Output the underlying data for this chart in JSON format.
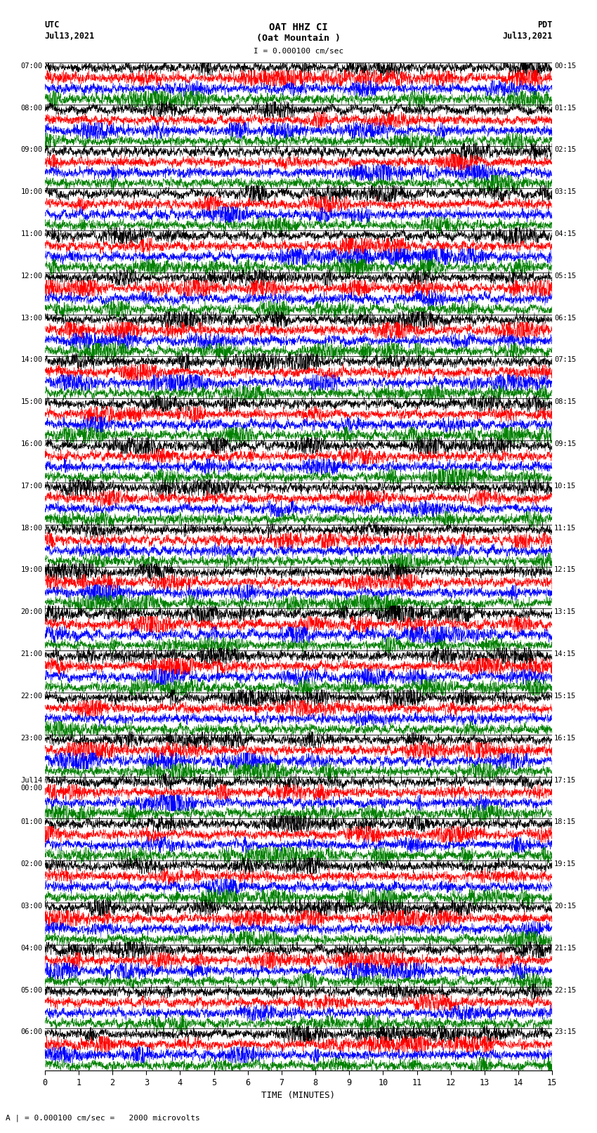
{
  "title_line1": "OAT HHZ CI",
  "title_line2": "(Oat Mountain )",
  "scale_bar_label": "I = 0.000100 cm/sec",
  "left_label1": "UTC",
  "left_label2": "Jul13,2021",
  "right_label1": "PDT",
  "right_label2": "Jul13,2021",
  "xlabel": "TIME (MINUTES)",
  "footer_note": "A | = 0.000100 cm/sec =   2000 microvolts",
  "utc_hour_labels": [
    "07:00",
    "08:00",
    "09:00",
    "10:00",
    "11:00",
    "12:00",
    "13:00",
    "14:00",
    "15:00",
    "16:00",
    "17:00",
    "18:00",
    "19:00",
    "20:00",
    "21:00",
    "22:00",
    "23:00",
    "Jul14\n00:00",
    "01:00",
    "02:00",
    "03:00",
    "04:00",
    "05:00",
    "06:00"
  ],
  "pdt_hour_labels": [
    "00:15",
    "01:15",
    "02:15",
    "03:15",
    "04:15",
    "05:15",
    "06:15",
    "07:15",
    "08:15",
    "09:15",
    "10:15",
    "11:15",
    "12:15",
    "13:15",
    "14:15",
    "15:15",
    "16:15",
    "17:15",
    "18:15",
    "19:15",
    "20:15",
    "21:15",
    "22:15",
    "23:15"
  ],
  "colors": [
    "black",
    "red",
    "blue",
    "green"
  ],
  "bg_color": "white",
  "n_hours": 24,
  "n_traces_per_hour": 4,
  "minutes": 15,
  "xlim": [
    0,
    15
  ],
  "xticks": [
    0,
    1,
    2,
    3,
    4,
    5,
    6,
    7,
    8,
    9,
    10,
    11,
    12,
    13,
    14,
    15
  ],
  "trace_amp": 0.48,
  "noise_base": 0.18,
  "lw": 0.35
}
